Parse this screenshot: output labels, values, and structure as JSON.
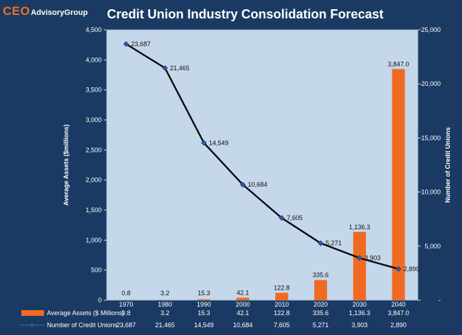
{
  "logo": {
    "part1": "CEO",
    "part2": "AdvisoryGroup"
  },
  "colors": {
    "background": "#1b3a63",
    "plot_area": "#c5d7ea",
    "bar": "#f06a22",
    "line": "#0b0b0b",
    "marker": "#2c5c9e"
  },
  "chart_data": {
    "type": "bar",
    "title": "Credit Union Industry Consolidation Forecast",
    "categories": [
      "1970",
      "1980",
      "1990",
      "2000",
      "2010",
      "2020",
      "2030",
      "2040"
    ],
    "series": [
      {
        "name": "Average Assets ($ Millions)",
        "type": "bar",
        "axis": "left",
        "values": [
          0.8,
          3.2,
          15.3,
          42.1,
          122.8,
          335.6,
          1136.3,
          3847.0
        ],
        "labels": [
          "0.8",
          "3.2",
          "15.3",
          "42.1",
          "122.8",
          "335.6",
          "1,136.3",
          "3,847.0"
        ]
      },
      {
        "name": "Number of Credit Unions",
        "type": "line",
        "axis": "right",
        "values": [
          23687,
          21465,
          14549,
          10684,
          7605,
          5271,
          3903,
          2890
        ],
        "labels": [
          "23,687",
          "21,465",
          "14,549",
          "10,684",
          "7,605",
          "5,271",
          "3,903",
          "2,890"
        ]
      }
    ],
    "ylabel_left": "Average Assets ($millions)",
    "ylabel_right": "Number of Credit Unions",
    "ylim_left": [
      0,
      4500
    ],
    "ylim_right": [
      0,
      25000
    ],
    "yticks_left": [
      "0",
      "500",
      "1,000",
      "1,500",
      "2,000",
      "2,500",
      "3,000",
      "3,500",
      "4,000",
      "4,500"
    ],
    "yticks_right": [
      "-",
      "5,000",
      "10,000",
      "15,000",
      "20,000",
      "25,000"
    ],
    "grid": false,
    "legend": "data-table-below"
  }
}
